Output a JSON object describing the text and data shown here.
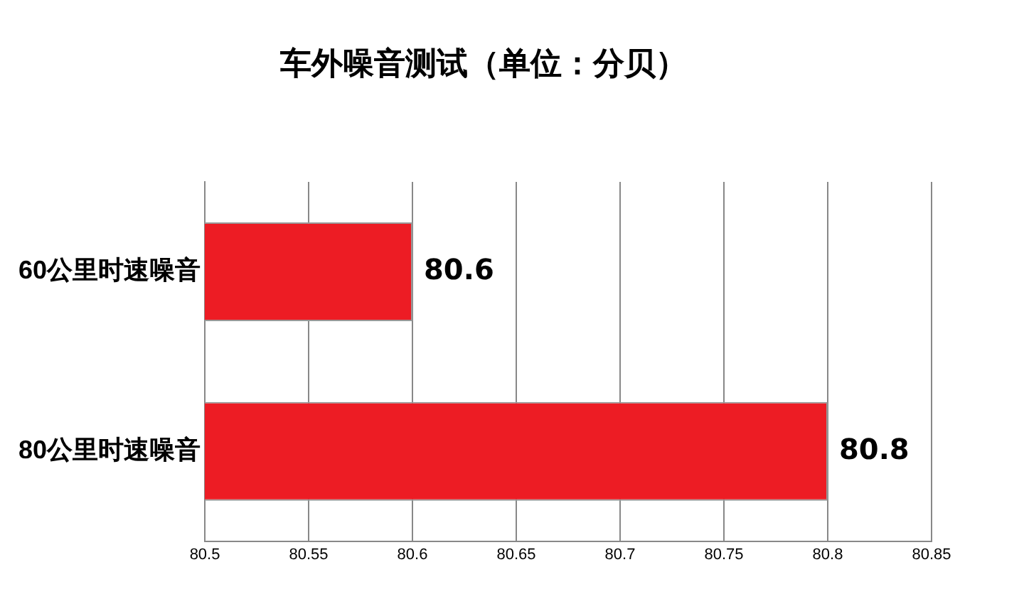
{
  "chart_data": {
    "type": "bar",
    "orientation": "horizontal",
    "title": "车外噪音测试（单位：分贝）",
    "categories": [
      "60公里时速噪音",
      "80公里时速噪音"
    ],
    "values": [
      80.6,
      80.8
    ],
    "color": "#ed1c24",
    "xlim": [
      80.5,
      80.85
    ],
    "xticks": [
      80.5,
      80.55,
      80.6,
      80.65,
      80.7,
      80.75,
      80.8,
      80.85
    ],
    "grid": "x",
    "data_labels": true
  }
}
